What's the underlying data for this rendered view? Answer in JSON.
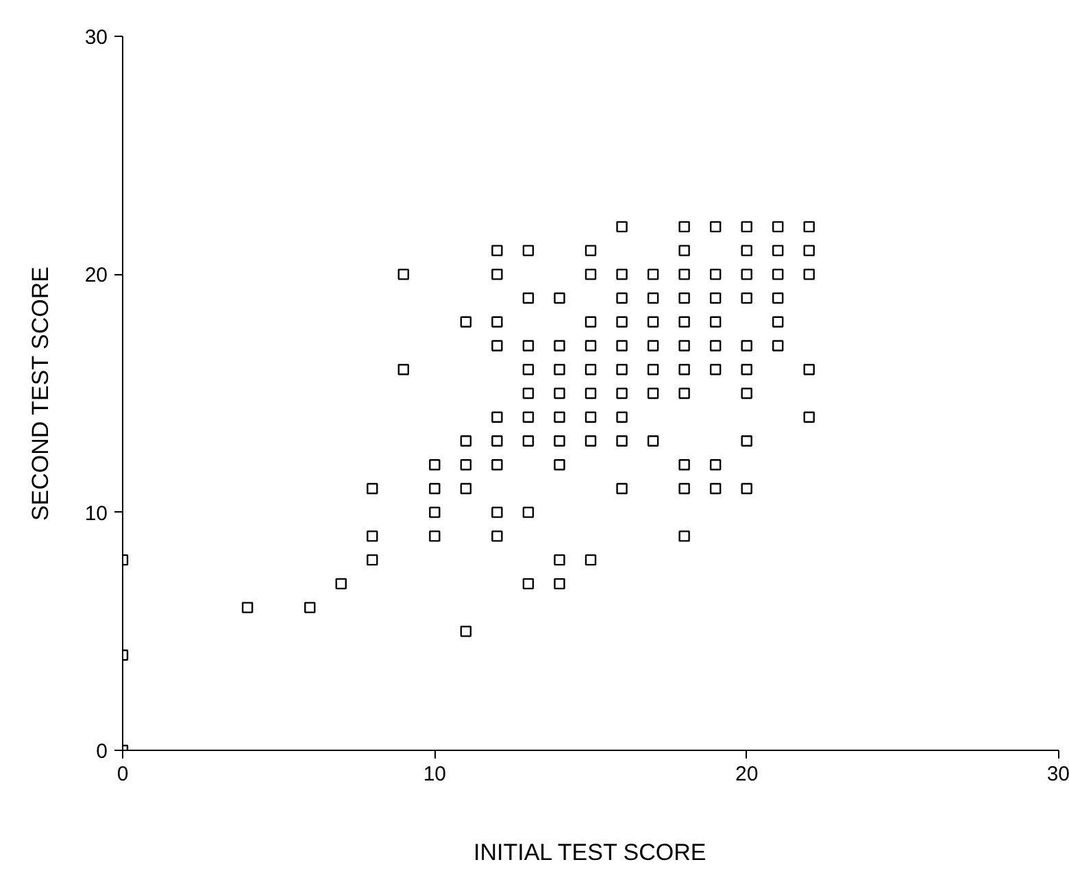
{
  "chart_data": {
    "type": "scatter",
    "xlabel": "INITIAL TEST SCORE",
    "ylabel": "SECOND TEST SCORE",
    "xlim": [
      0,
      30
    ],
    "ylim": [
      0,
      30
    ],
    "xticks": [
      0,
      10,
      20,
      30
    ],
    "yticks": [
      0,
      10,
      20,
      30
    ],
    "marker": "square",
    "series": [
      {
        "color": "#000000",
        "x": [
          16,
          18,
          19,
          20,
          21,
          22,
          12,
          13,
          15,
          18,
          20,
          21,
          22,
          9,
          12,
          15,
          16,
          17,
          18,
          19,
          20,
          21,
          22,
          13,
          14,
          16,
          17,
          18,
          19,
          20,
          21,
          11,
          12,
          15,
          16,
          17,
          18,
          19,
          21,
          12,
          13,
          14,
          15,
          16,
          17,
          18,
          19,
          20,
          21,
          9,
          13,
          14,
          15,
          16,
          17,
          18,
          19,
          20,
          22,
          13,
          14,
          15,
          16,
          17,
          18,
          20,
          12,
          13,
          14,
          15,
          16,
          22,
          11,
          12,
          13,
          14,
          15,
          16,
          17,
          20,
          10,
          11,
          12,
          14,
          18,
          19,
          8,
          10,
          11,
          16,
          18,
          19,
          20,
          10,
          12,
          13,
          8,
          10,
          12,
          18,
          8,
          14,
          15,
          7,
          13,
          14,
          4,
          6,
          11,
          0,
          0,
          0
        ],
        "values": [
          22,
          22,
          22,
          22,
          22,
          22,
          21,
          21,
          21,
          21,
          21,
          21,
          21,
          20,
          20,
          20,
          20,
          20,
          20,
          20,
          20,
          20,
          20,
          19,
          19,
          19,
          19,
          19,
          19,
          19,
          19,
          18,
          18,
          18,
          18,
          18,
          18,
          18,
          18,
          17,
          17,
          17,
          17,
          17,
          17,
          17,
          17,
          17,
          17,
          16,
          16,
          16,
          16,
          16,
          16,
          16,
          16,
          16,
          16,
          15,
          15,
          15,
          15,
          15,
          15,
          15,
          14,
          14,
          14,
          14,
          14,
          14,
          13,
          13,
          13,
          13,
          13,
          13,
          13,
          13,
          12,
          12,
          12,
          12,
          12,
          12,
          11,
          11,
          11,
          11,
          11,
          11,
          11,
          10,
          10,
          10,
          9,
          9,
          9,
          9,
          8,
          8,
          8,
          7,
          7,
          7,
          6,
          6,
          5,
          8,
          4,
          0
        ]
      }
    ]
  }
}
